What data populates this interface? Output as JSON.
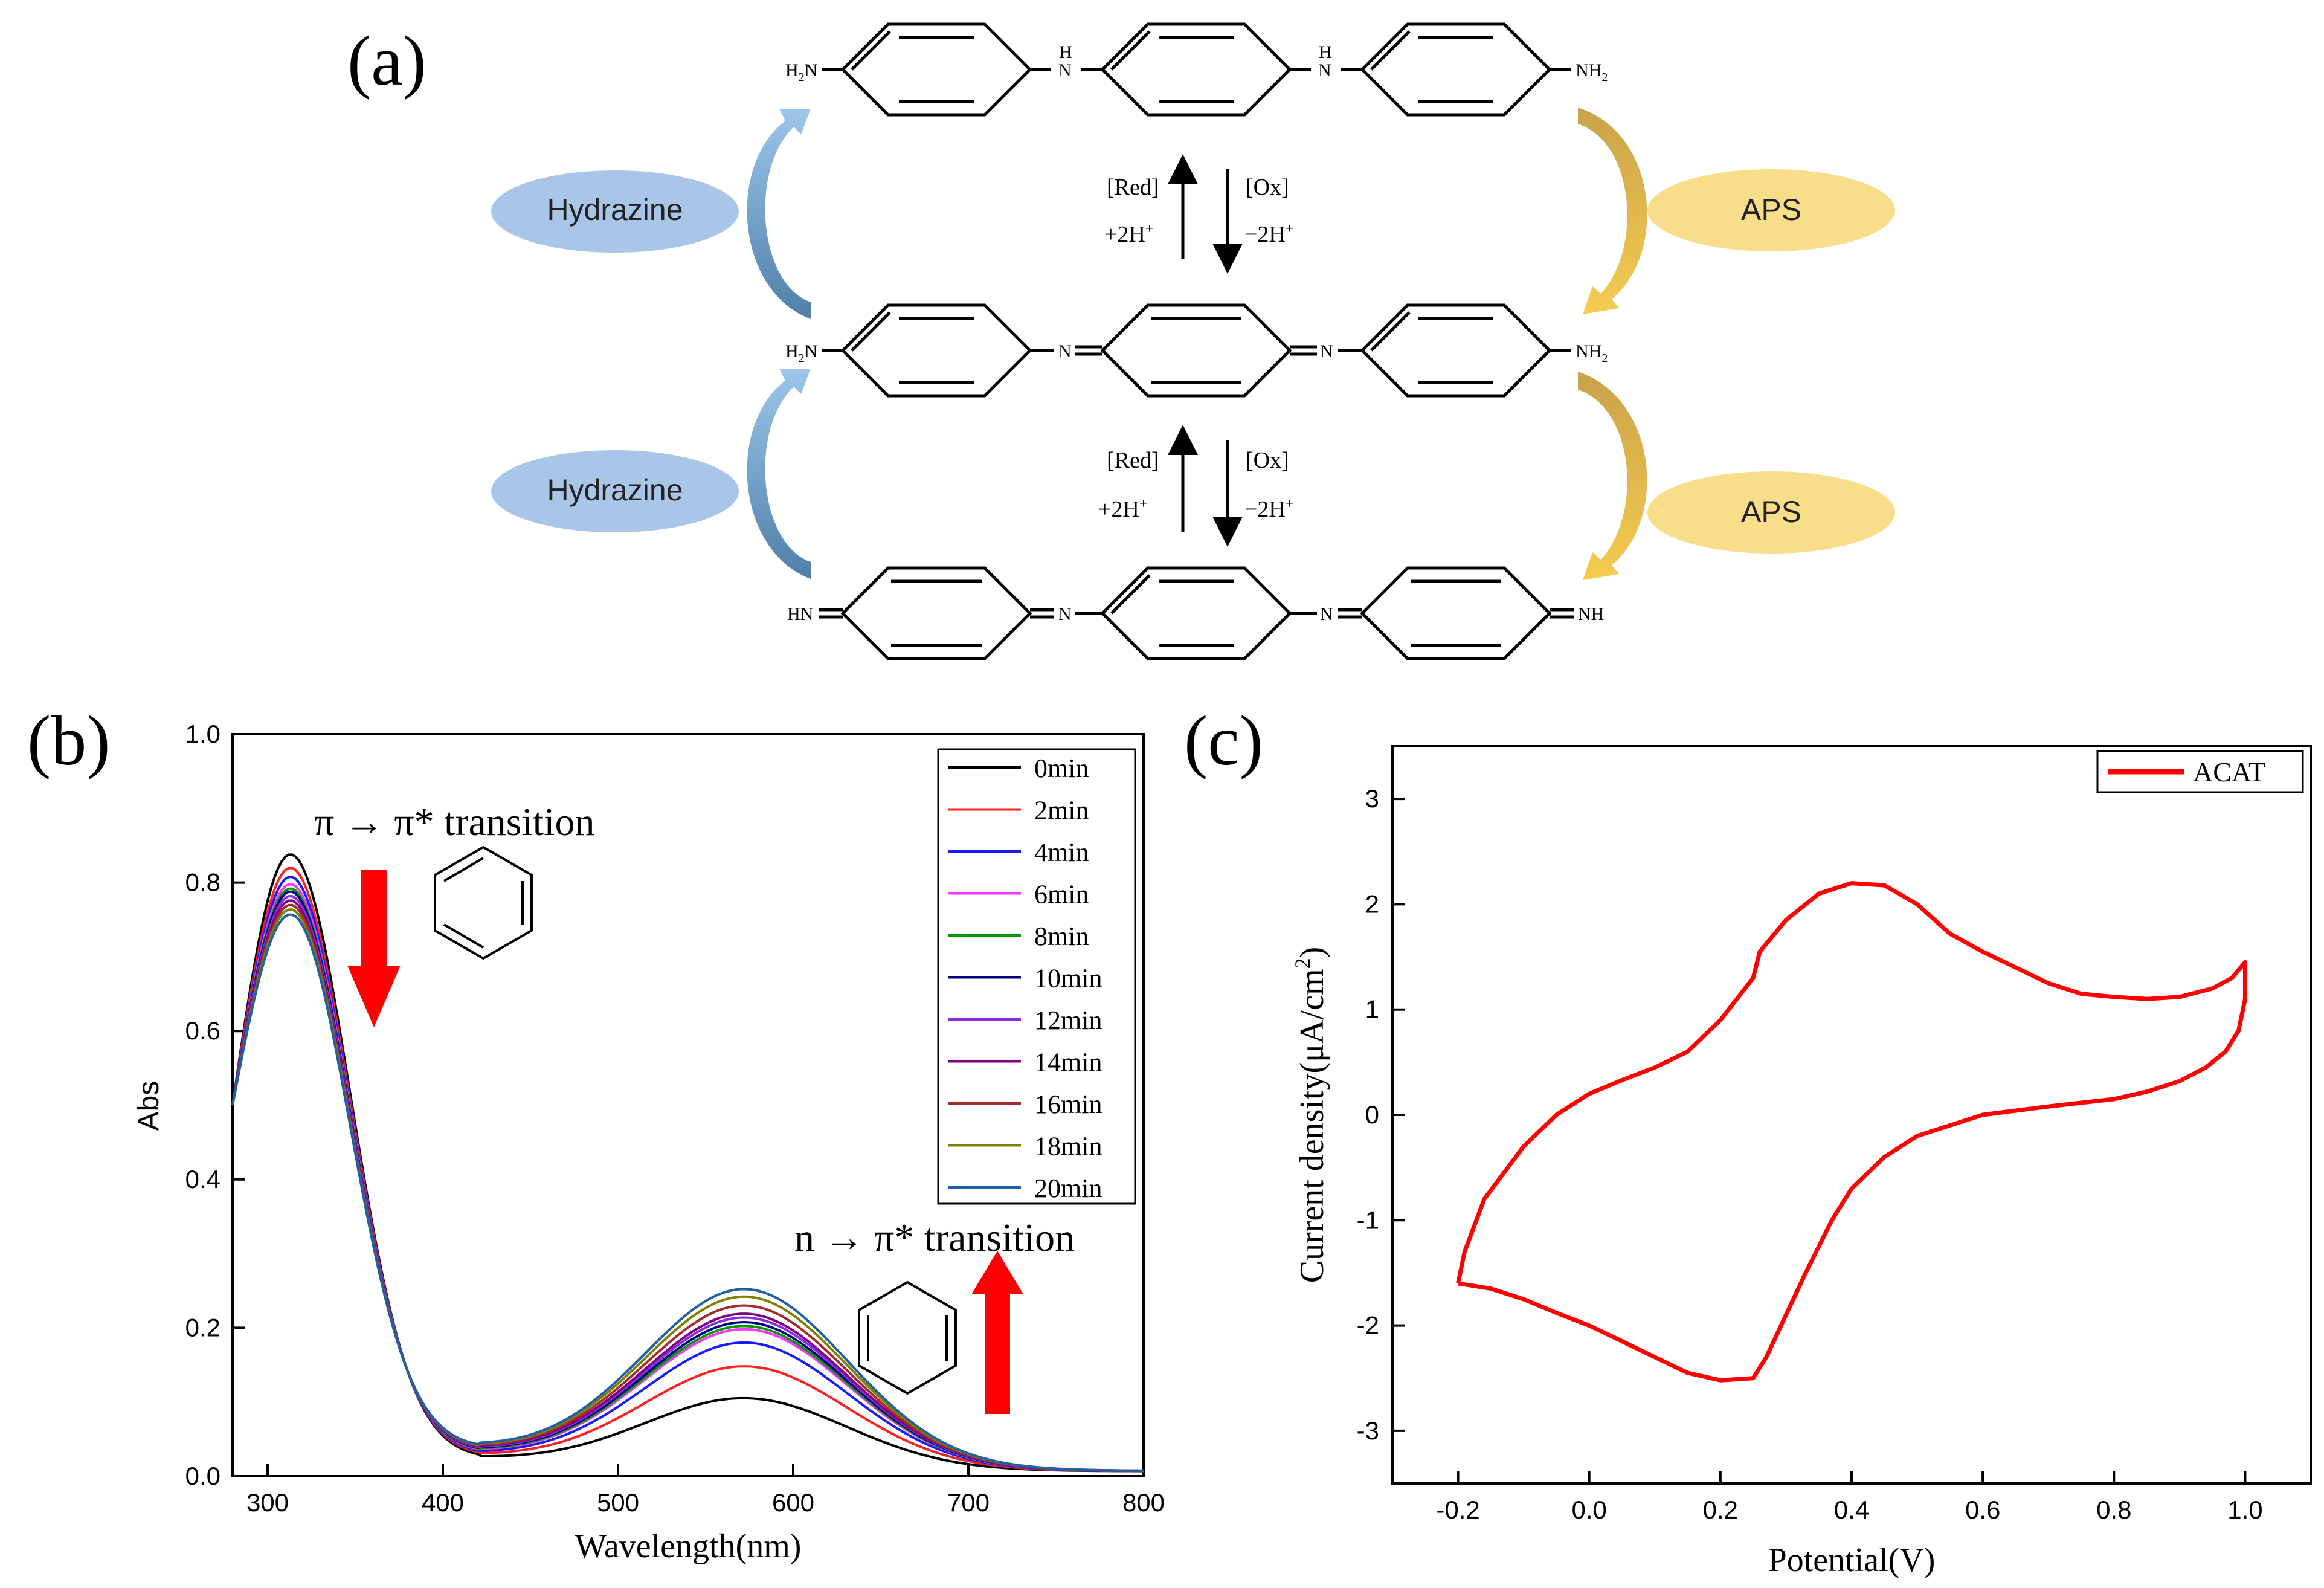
{
  "panels": {
    "a": {
      "label": "(a)",
      "left_reagent": "Hydrazine",
      "right_reagent": "APS",
      "red_label": "[Red]",
      "ox_label": "[Ox]",
      "plus_h": "+2H",
      "minus_h": "−2H",
      "h_superscript": "+",
      "structure_labels": {
        "h2n": "H",
        "h2n_sub": "2",
        "h2n_n": "N",
        "nh2_nh": "NH",
        "nh2_sub": "2",
        "n": "N",
        "h": "H",
        "hn": "HN",
        "nh": "NH"
      }
    },
    "b": {
      "label": "(b)"
    },
    "c": {
      "label": "(c)"
    }
  },
  "chart_data": [
    {
      "type": "line",
      "panel": "b",
      "xlabel": "Wavelength(nm)",
      "ylabel": "Abs",
      "xlim": [
        280,
        800
      ],
      "ylim": [
        0.0,
        1.0
      ],
      "xticks": [
        300,
        400,
        500,
        600,
        700,
        800
      ],
      "yticks": [
        0.0,
        0.2,
        0.4,
        0.6,
        0.8,
        1.0
      ],
      "xtick_labels": [
        "300",
        "400",
        "500",
        "600",
        "700",
        "800"
      ],
      "ytick_labels": [
        "0.0",
        "0.2",
        "0.4",
        "0.6",
        "0.8",
        "1.0"
      ],
      "legend_position": "top-right",
      "annotations": {
        "pi_label": "π → π* transition",
        "n_label": "n → π* transition"
      },
      "series": [
        {
          "name": "0min",
          "color": "#000000",
          "peak1": 0.838,
          "peak2": 0.102,
          "min": 0.024
        },
        {
          "name": "2min",
          "color": "#ff2020",
          "peak1": 0.82,
          "peak2": 0.145,
          "min": 0.027
        },
        {
          "name": "4min",
          "color": "#1a1aff",
          "peak1": 0.808,
          "peak2": 0.177,
          "min": 0.029
        },
        {
          "name": "6min",
          "color": "#ff33ff",
          "peak1": 0.798,
          "peak2": 0.195,
          "min": 0.031
        },
        {
          "name": "8min",
          "color": "#009900",
          "peak1": 0.792,
          "peak2": 0.199,
          "min": 0.032
        },
        {
          "name": "10min",
          "color": "#000080",
          "peak1": 0.788,
          "peak2": 0.204,
          "min": 0.033
        },
        {
          "name": "12min",
          "color": "#8a2be2",
          "peak1": 0.782,
          "peak2": 0.21,
          "min": 0.034
        },
        {
          "name": "14min",
          "color": "#800080",
          "peak1": 0.776,
          "peak2": 0.215,
          "min": 0.035
        },
        {
          "name": "16min",
          "color": "#a52a2a",
          "peak1": 0.77,
          "peak2": 0.226,
          "min": 0.036
        },
        {
          "name": "18min",
          "color": "#808000",
          "peak1": 0.764,
          "peak2": 0.238,
          "min": 0.037
        },
        {
          "name": "20min",
          "color": "#1f5fa6",
          "peak1": 0.757,
          "peak2": 0.248,
          "min": 0.038
        }
      ],
      "shape": {
        "start_value": 0.5,
        "peak1_x": 313,
        "min_x": 420,
        "peak2_x": 573,
        "end_value": 0.006
      }
    },
    {
      "type": "line",
      "panel": "c",
      "xlabel": "Potential(V)",
      "ylabel": "Current density(μA/cm",
      "ylabel_sup": "2",
      "ylabel_close": ")",
      "xlim": [
        -0.3,
        1.1
      ],
      "ylim": [
        -3.5,
        3.5
      ],
      "xticks": [
        -0.2,
        0.0,
        0.2,
        0.4,
        0.6,
        0.8,
        1.0
      ],
      "yticks": [
        -3,
        -2,
        -1,
        0,
        1,
        2,
        3
      ],
      "xtick_labels": [
        "-0.2",
        "0.0",
        "0.2",
        "0.4",
        "0.6",
        "0.8",
        "1.0"
      ],
      "ytick_labels": [
        "-3",
        "-2",
        "-1",
        "0",
        "1",
        "2",
        "3"
      ],
      "legend_position": "top-right",
      "series": [
        {
          "name": "ACAT",
          "color": "#ff0000",
          "x": [
            -0.2,
            -0.19,
            -0.16,
            -0.1,
            -0.05,
            0.0,
            0.05,
            0.1,
            0.15,
            0.2,
            0.25,
            0.26,
            0.3,
            0.35,
            0.4,
            0.45,
            0.5,
            0.55,
            0.6,
            0.65,
            0.7,
            0.75,
            0.8,
            0.85,
            0.9,
            0.95,
            0.98,
            1.0,
            1.0,
            0.99,
            0.97,
            0.94,
            0.9,
            0.85,
            0.8,
            0.7,
            0.6,
            0.55,
            0.5,
            0.45,
            0.4,
            0.37,
            0.33,
            0.3,
            0.27,
            0.25,
            0.2,
            0.15,
            0.1,
            0.05,
            0.0,
            -0.05,
            -0.1,
            -0.15,
            -0.18,
            -0.2
          ],
          "y": [
            -1.6,
            -1.3,
            -0.8,
            -0.3,
            0.0,
            0.2,
            0.33,
            0.45,
            0.6,
            0.9,
            1.3,
            1.55,
            1.85,
            2.1,
            2.2,
            2.18,
            2.0,
            1.72,
            1.55,
            1.4,
            1.25,
            1.15,
            1.12,
            1.1,
            1.12,
            1.2,
            1.3,
            1.45,
            1.1,
            0.8,
            0.6,
            0.45,
            0.32,
            0.22,
            0.15,
            0.08,
            0.0,
            -0.1,
            -0.2,
            -0.4,
            -0.7,
            -1.0,
            -1.5,
            -1.9,
            -2.3,
            -2.5,
            -2.52,
            -2.45,
            -2.3,
            -2.15,
            -2.0,
            -1.88,
            -1.75,
            -1.65,
            -1.62,
            -1.6
          ]
        }
      ]
    }
  ]
}
